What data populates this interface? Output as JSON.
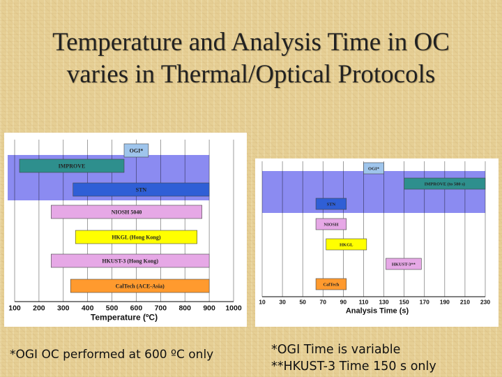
{
  "slide": {
    "title_line1": "Temperature and Analysis Time in OC",
    "title_line2": "varies in Thermal/Optical Protocols",
    "footnote_left": "*OGI OC performed at 600 ºC only",
    "footnote_right_line1": "*OGI Time is variable",
    "footnote_right_line2": "**HKUST-3 Time 150 s only"
  },
  "colors": {
    "band": "#7777ee",
    "OGI": "#9fc5ec",
    "IMPROVE": "#2e8f8d",
    "STN": "#2f5fd6",
    "NIOSH": "#e6a8e6",
    "HKGL": "#ffff00",
    "HKUST": "#e6a8e6",
    "CalTech": "#ff9a2e"
  },
  "chart_data": [
    {
      "type": "bar",
      "orientation": "horizontal-range",
      "xlabel": "Temperature (ºC)",
      "xlim": [
        100,
        1000
      ],
      "xticks": [
        100,
        200,
        300,
        400,
        500,
        600,
        700,
        800,
        900,
        1000
      ],
      "band": [
        100,
        900
      ],
      "series": [
        {
          "name": "OGI*",
          "start": 550,
          "end": 650,
          "color_key": "OGI"
        },
        {
          "name": "IMPROVE",
          "start": 120,
          "end": 550,
          "color_key": "IMPROVE"
        },
        {
          "name": "STN",
          "start": 340,
          "end": 900,
          "color_key": "STN"
        },
        {
          "name": "NIOSH 5040",
          "start": 250,
          "end": 870,
          "color_key": "NIOSH"
        },
        {
          "name": "HKGL (Hong Kong)",
          "start": 350,
          "end": 850,
          "color_key": "HKGL"
        },
        {
          "name": "HKUST-3 (Hong Kong)",
          "start": 250,
          "end": 900,
          "color_key": "HKUST"
        },
        {
          "name": "CalTech (ACE-Asia)",
          "start": 330,
          "end": 900,
          "color_key": "CalTech"
        }
      ]
    },
    {
      "type": "bar",
      "orientation": "horizontal-range",
      "xlabel": "Analysis Time (s)",
      "xlim": [
        10,
        230
      ],
      "xticks": [
        10,
        30,
        50,
        70,
        90,
        110,
        130,
        150,
        170,
        190,
        210,
        230
      ],
      "band": [
        10,
        230
      ],
      "series": [
        {
          "name": "OGI*",
          "start": 110,
          "end": 130,
          "color_key": "OGI"
        },
        {
          "name": "IMPROVE (to 580 s)",
          "start": 150,
          "end": 230,
          "color_key": "IMPROVE"
        },
        {
          "name": "STN",
          "start": 63,
          "end": 93,
          "color_key": "STN"
        },
        {
          "name": "NIOSH",
          "start": 63,
          "end": 93,
          "color_key": "NIOSH"
        },
        {
          "name": "HKGL",
          "start": 73,
          "end": 113,
          "color_key": "HKGL"
        },
        {
          "name": "HKUST-3**",
          "start": 132,
          "end": 167,
          "color_key": "HKUST"
        },
        {
          "name": "CalTech",
          "start": 63,
          "end": 93,
          "color_key": "CalTech"
        }
      ]
    }
  ]
}
